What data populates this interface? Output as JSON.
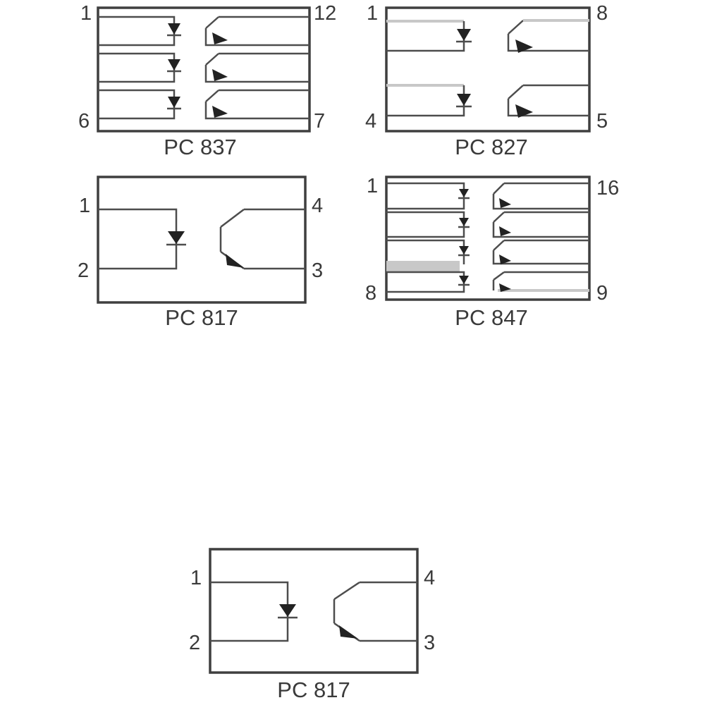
{
  "colors": {
    "line": "#4d4d4d",
    "outline": "#3f3f3f",
    "symbol": "#222222",
    "highlight": "#c8c8c8",
    "text": "#3a3a3a"
  },
  "packages": [
    {
      "id": "pc837",
      "name": "PC 837",
      "channels": 3,
      "pins": {
        "top_left": "1",
        "top_right": "12",
        "bottom_left": "6",
        "bottom_right": "7"
      }
    },
    {
      "id": "pc827",
      "name": "PC 827",
      "channels": 2,
      "pins": {
        "top_left": "1",
        "top_right": "8",
        "bottom_left": "4",
        "bottom_right": "5"
      }
    },
    {
      "id": "pc817a",
      "name": "PC 817",
      "channels": 1,
      "pins": {
        "top_left": "1",
        "top_right": "4",
        "bottom_left": "2",
        "bottom_right": "3"
      }
    },
    {
      "id": "pc847",
      "name": "PC 847",
      "channels": 4,
      "pins": {
        "top_left": "1",
        "top_right": "16",
        "bottom_left": "8",
        "bottom_right": "9"
      }
    },
    {
      "id": "pc817b",
      "name": "PC 817",
      "channels": 1,
      "pins": {
        "top_left": "1",
        "top_right": "4",
        "bottom_left": "2",
        "bottom_right": "3"
      }
    }
  ]
}
